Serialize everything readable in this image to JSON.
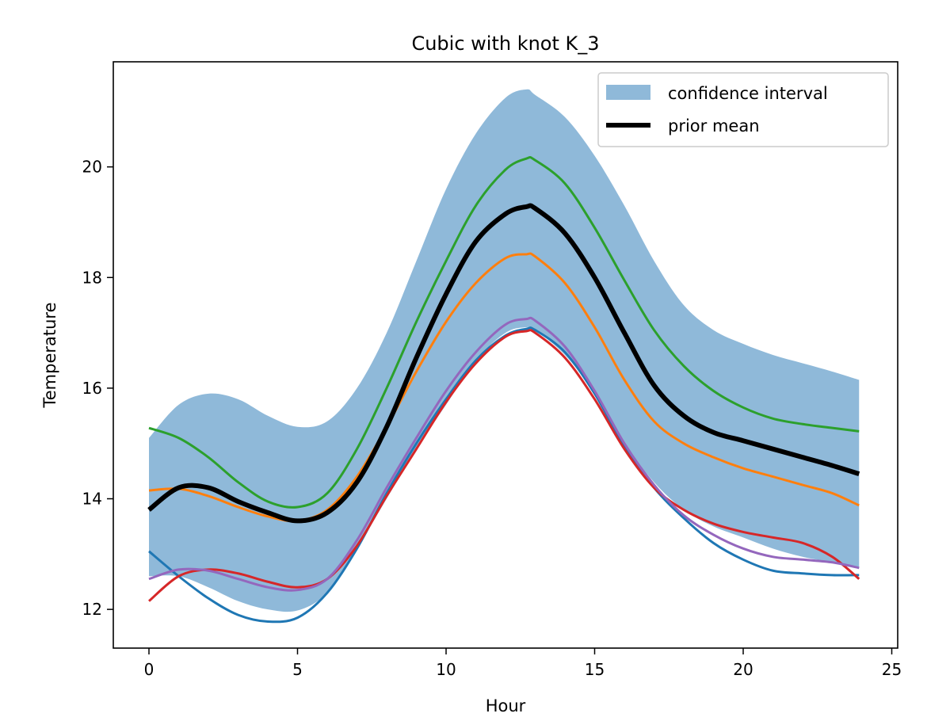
{
  "chart_data": {
    "type": "line",
    "title": "Cubic with knot K_3",
    "xlabel": "Hour",
    "ylabel": "Temperature",
    "xlim": [
      -1.2,
      25.2
    ],
    "ylim": [
      11.3,
      21.9
    ],
    "xticks": [
      0,
      5,
      10,
      15,
      20,
      25
    ],
    "yticks": [
      12,
      14,
      16,
      18,
      20
    ],
    "grid": false,
    "legend_position": "top-right",
    "legend": [
      {
        "label": "confidence interval",
        "kind": "patch",
        "color": "#8fb9d9"
      },
      {
        "label": "prior mean",
        "kind": "line",
        "color": "#000000"
      }
    ],
    "x": [
      0,
      1,
      2,
      3,
      4,
      5,
      6,
      7,
      8,
      9,
      10,
      11,
      12,
      12.7,
      13,
      14,
      15,
      16,
      17,
      18,
      19,
      20,
      21,
      22,
      23,
      23.9
    ],
    "confidence_interval": {
      "color": "#8fb9d9",
      "upper": [
        15.1,
        15.7,
        15.9,
        15.8,
        15.5,
        15.3,
        15.4,
        16.0,
        17.0,
        18.3,
        19.6,
        20.6,
        21.25,
        21.4,
        21.3,
        20.9,
        20.2,
        19.3,
        18.3,
        17.5,
        17.05,
        16.8,
        16.6,
        16.45,
        16.3,
        16.15
      ],
      "lower": [
        12.6,
        12.6,
        12.4,
        12.15,
        12.0,
        11.98,
        12.3,
        13.1,
        14.0,
        14.9,
        15.7,
        16.5,
        17.0,
        17.1,
        17.05,
        16.6,
        15.9,
        15.0,
        14.3,
        13.8,
        13.5,
        13.3,
        13.1,
        12.95,
        12.85,
        12.75
      ]
    },
    "series": [
      {
        "color": "#1f77b4",
        "width": 3,
        "values": [
          13.05,
          12.6,
          12.2,
          11.9,
          11.78,
          11.85,
          12.3,
          13.1,
          14.1,
          15.0,
          15.8,
          16.5,
          16.95,
          17.07,
          17.05,
          16.65,
          15.9,
          14.95,
          14.2,
          13.65,
          13.2,
          12.9,
          12.7,
          12.65,
          12.62,
          12.62
        ]
      },
      {
        "color": "#d62728",
        "width": 3,
        "values": [
          12.15,
          12.6,
          12.72,
          12.65,
          12.5,
          12.4,
          12.55,
          13.15,
          14.05,
          14.9,
          15.75,
          16.45,
          16.93,
          17.03,
          17.0,
          16.55,
          15.8,
          14.9,
          14.2,
          13.8,
          13.55,
          13.4,
          13.3,
          13.2,
          12.95,
          12.55
        ]
      },
      {
        "color": "#9467bd",
        "width": 3,
        "values": [
          12.55,
          12.72,
          12.7,
          12.55,
          12.4,
          12.35,
          12.55,
          13.25,
          14.2,
          15.1,
          15.95,
          16.65,
          17.15,
          17.25,
          17.22,
          16.75,
          15.95,
          15.0,
          14.25,
          13.7,
          13.35,
          13.1,
          12.95,
          12.9,
          12.85,
          12.75
        ]
      },
      {
        "color": "#ff7f0e",
        "width": 3,
        "values": [
          14.15,
          14.18,
          14.05,
          13.85,
          13.68,
          13.6,
          13.8,
          14.4,
          15.3,
          16.3,
          17.2,
          17.9,
          18.35,
          18.42,
          18.38,
          17.9,
          17.1,
          16.15,
          15.4,
          15.0,
          14.75,
          14.55,
          14.4,
          14.25,
          14.1,
          13.88
        ]
      },
      {
        "color": "#2ca02c",
        "width": 3,
        "values": [
          15.28,
          15.1,
          14.75,
          14.3,
          13.95,
          13.85,
          14.1,
          14.9,
          16.0,
          17.2,
          18.3,
          19.3,
          19.95,
          20.15,
          20.12,
          19.7,
          18.9,
          17.95,
          17.05,
          16.4,
          15.95,
          15.65,
          15.45,
          15.35,
          15.28,
          15.22
        ]
      },
      {
        "name": "prior mean",
        "color": "#000000",
        "width": 6,
        "values": [
          13.8,
          14.2,
          14.2,
          13.95,
          13.75,
          13.6,
          13.75,
          14.3,
          15.3,
          16.55,
          17.7,
          18.65,
          19.15,
          19.28,
          19.25,
          18.8,
          18.0,
          17.0,
          16.05,
          15.5,
          15.2,
          15.05,
          14.9,
          14.75,
          14.6,
          14.45
        ]
      }
    ]
  }
}
